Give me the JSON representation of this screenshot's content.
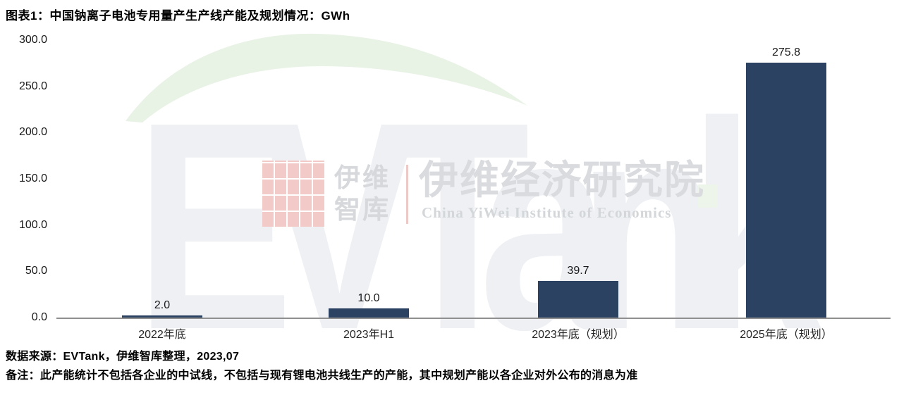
{
  "header": {
    "title": "图表1：中国钠离子电池专用量产生产线产能及规划情况：GWh"
  },
  "chart_data": {
    "type": "bar",
    "title": "图表1：中国钠离子电池专用量产生产线产能及规划情况：GWh",
    "unit": "GWh",
    "categories": [
      "2022年底",
      "2023年H1",
      "2023年底（规划）",
      "2025年底（规划）"
    ],
    "values": [
      2.0,
      10.0,
      39.7,
      275.8
    ],
    "value_labels": [
      "2.0",
      "10.0",
      "39.7",
      "275.8"
    ],
    "y_ticks": [
      "300.0",
      "250.0",
      "200.0",
      "150.0",
      "100.0",
      "50.0",
      "0.0"
    ],
    "ylim": [
      0,
      300
    ],
    "ytick_step": 50,
    "grid": "off",
    "legend": "none",
    "bar_color": "#2B4262",
    "axis_line_color": "#8f8f8f"
  },
  "watermark": {
    "brand_text": "EVTank",
    "logo_cn_line1": "伊维",
    "logo_cn_line2": "智库",
    "institute_cn": "伊维经济研究院",
    "institute_en": "China YiWei Institute of Economics",
    "logo_red": "#f2cac7",
    "text_gray": "#d8dadd",
    "letters_gray": "#eef0f4",
    "swoosh_green": "#e8f2e5"
  },
  "footer": {
    "source": "数据来源：EVTank，伊维智库整理，2023,07",
    "note": "备注：此产能统计不包括各企业的中试线，不包括与现有锂电池共线生产的产能，其中规划产能以各企业对外公布的消息为准"
  }
}
